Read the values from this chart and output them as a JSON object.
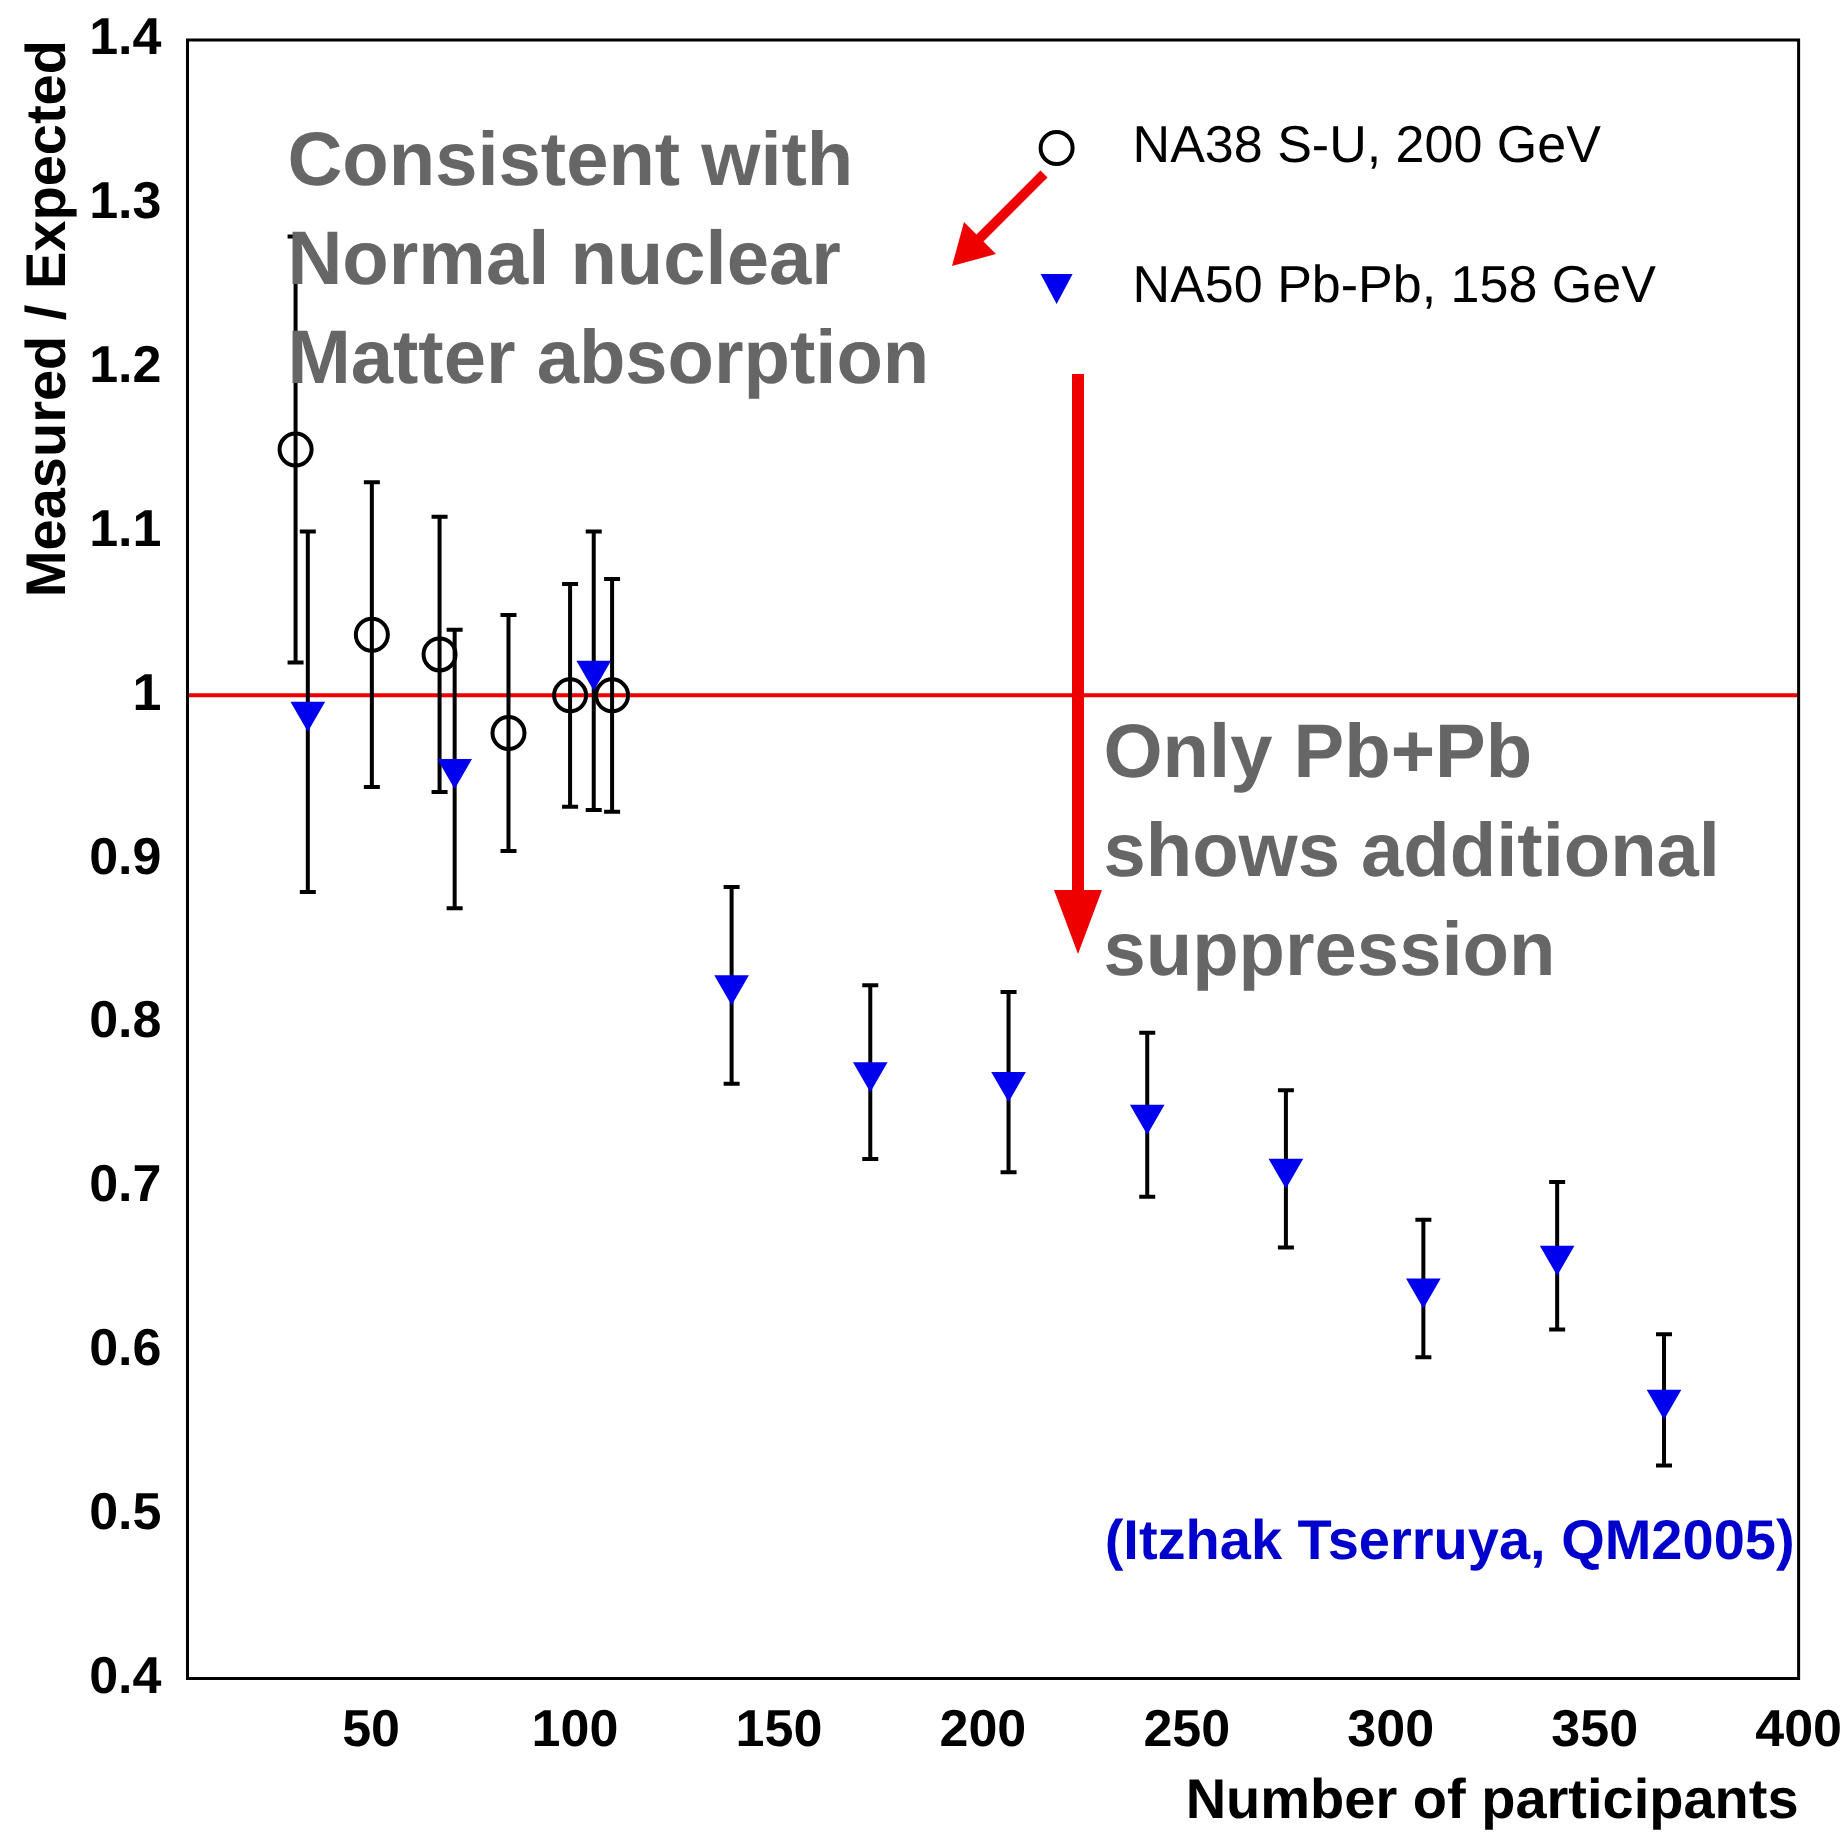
{
  "chart_data": {
    "type": "scatter",
    "xlabel": "Number of participants",
    "ylabel": "Measured / Expected",
    "xlim": [
      5,
      400
    ],
    "xticks": [
      50,
      100,
      150,
      200,
      250,
      300,
      350,
      400
    ],
    "ylim": [
      0.4,
      1.4
    ],
    "yticks": [
      0.4,
      0.5,
      0.6,
      0.7,
      0.8,
      0.9,
      1,
      1.1,
      1.2,
      1.3,
      1.4
    ],
    "grid": false,
    "legend": "top right",
    "series": [
      {
        "name": "NA38 S-U, 200 GeV",
        "color": "#000000",
        "marker": "circle",
        "x": [
          31.5,
          50.2,
          66.8,
          83.7,
          98.8,
          109.1
        ],
        "values": [
          1.15,
          1.037,
          1.025,
          0.977,
          1.0,
          1.0
        ],
        "errors": [
          0.13,
          0.093,
          0.084,
          0.072,
          0.068,
          0.071
        ]
      },
      {
        "name": "NA50 Pb-Pb, 158 GeV",
        "color": "#0000ee",
        "marker": "triangle",
        "x": [
          34.5,
          70.5,
          104.6,
          138.4,
          172.4,
          206.3,
          240.3,
          274.3,
          308,
          340.8,
          367
        ],
        "values": [
          0.99,
          0.955,
          1.015,
          0.823,
          0.77,
          0.764,
          0.744,
          0.711,
          0.638,
          0.658,
          0.57
        ],
        "errors": [
          0.11,
          0.085,
          0.085,
          0.06,
          0.053,
          0.055,
          0.05,
          0.048,
          0.042,
          0.045,
          0.04
        ]
      }
    ],
    "ref_lines": [
      {
        "axis": "y",
        "value": 1,
        "color": "#ee0000"
      }
    ],
    "annotations": [
      "Consistent with\nNormal nuclear\nMatter absorption",
      "Only Pb+Pb\nshows additional\nsuppression",
      "(Itzhak Tserruya, QM2005)"
    ]
  }
}
